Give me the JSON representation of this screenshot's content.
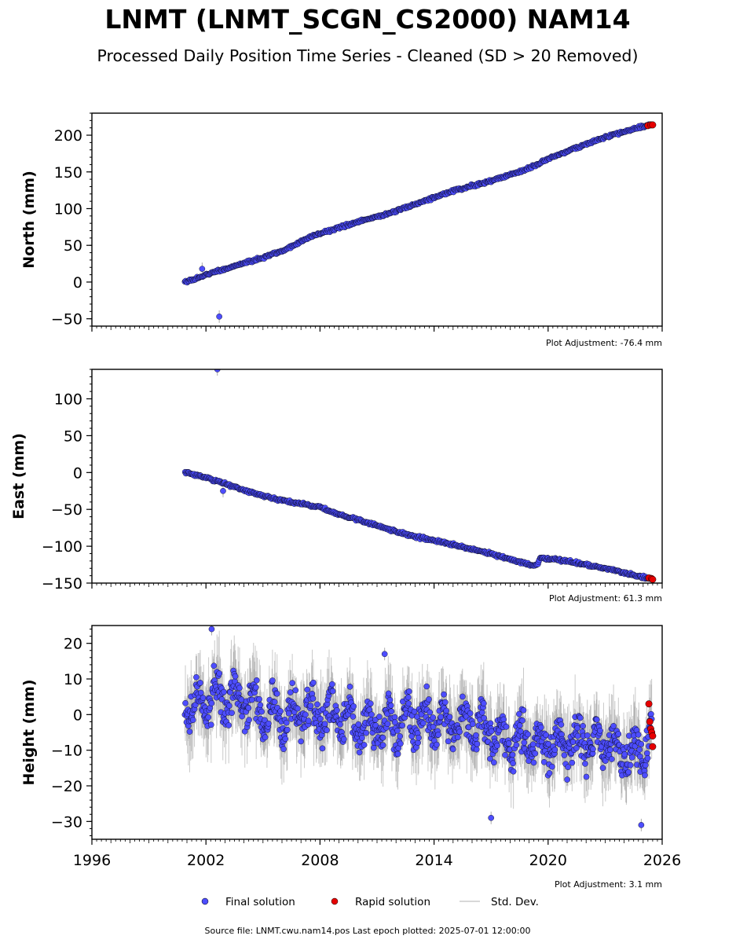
{
  "colors": {
    "final": "#4d4dff",
    "rapid": "#e60000",
    "stddev": "#aaaaaa",
    "marker_edge": "#000000"
  },
  "chart_data": {
    "type": "scatter",
    "title": "LNMT (LNMT_SCGN_CS2000) NAM14",
    "subtitle": "Processed Daily Position Time Series - Cleaned (SD > 20 Removed)",
    "xlim": [
      1996,
      2026
    ],
    "xticks": [
      "1996",
      "2002",
      "2008",
      "2014",
      "2020",
      "2026"
    ],
    "legend": {
      "placement": "bottom-center",
      "entries": [
        "Final solution",
        "Rapid solution",
        "Std. Dev."
      ]
    },
    "source_note": "Source file: LNMT.cwu.nam14.pos  Last epoch plotted: 2025-07-01 12:00:00",
    "panels": [
      {
        "ylabel": "North (mm)",
        "ylim": [
          -60,
          230
        ],
        "yticks": [
          "−50",
          "0",
          "50",
          "100",
          "150",
          "200"
        ],
        "adjustment": "Plot Adjustment: -76.4 mm",
        "final_series": {
          "name": "Final solution",
          "x": [
            2000.9,
            2001.5,
            2002.0,
            2002.5,
            2003.0,
            2004.0,
            2005.0,
            2006.0,
            2007.0,
            2007.5,
            2008.0,
            2009.0,
            2010.0,
            2011.0,
            2012.0,
            2013.0,
            2014.0,
            2015.0,
            2016.0,
            2017.0,
            2018.0,
            2019.0,
            2020.0,
            2021.0,
            2022.0,
            2023.0,
            2024.0,
            2025.0,
            2025.4
          ],
          "y": [
            0,
            5,
            10,
            14,
            18,
            26,
            33,
            42,
            55,
            62,
            66,
            74,
            82,
            89,
            97,
            106,
            115,
            124,
            131,
            138,
            146,
            155,
            168,
            178,
            188,
            197,
            205,
            212,
            214
          ]
        },
        "rapid_series": {
          "name": "Rapid solution",
          "x": [
            2025.25,
            2025.4,
            2025.5
          ],
          "y": [
            213,
            214,
            214
          ]
        },
        "outliers": {
          "x": [
            2001.8,
            2002.7
          ],
          "y": [
            18,
            -47
          ]
        }
      },
      {
        "ylabel": "East (mm)",
        "ylim": [
          -150,
          140
        ],
        "yticks": [
          "−150",
          "−100",
          "−50",
          "0",
          "50",
          "100"
        ],
        "adjustment": "Plot Adjustment: 61.3 mm",
        "final_series": {
          "name": "Final solution",
          "x": [
            2000.9,
            2001.5,
            2002.0,
            2003.0,
            2004.0,
            2005.0,
            2006.0,
            2007.0,
            2008.0,
            2009.0,
            2010.0,
            2011.0,
            2012.0,
            2013.0,
            2014.0,
            2015.0,
            2016.0,
            2017.0,
            2018.0,
            2019.0,
            2019.4,
            2019.6,
            2020.0,
            2021.0,
            2022.0,
            2023.0,
            2024.0,
            2025.0,
            2025.4
          ],
          "y": [
            0,
            -3,
            -7,
            -15,
            -24,
            -32,
            -38,
            -42,
            -47,
            -57,
            -64,
            -72,
            -80,
            -87,
            -92,
            -98,
            -104,
            -110,
            -118,
            -125,
            -126,
            -116,
            -117,
            -120,
            -125,
            -130,
            -136,
            -142,
            -144
          ]
        },
        "rapid_series": {
          "name": "Rapid solution",
          "x": [
            2025.3,
            2025.45,
            2025.5
          ],
          "y": [
            -143,
            -144,
            -145
          ]
        },
        "outliers": {
          "x": [
            2002.6,
            2002.9
          ],
          "y": [
            140,
            -25
          ]
        }
      },
      {
        "ylabel": "Height (mm)",
        "ylim": [
          -35,
          25
        ],
        "yticks": [
          "−30",
          "−20",
          "−10",
          "0",
          "10",
          "20"
        ],
        "adjustment": "Plot Adjustment: 3.1 mm",
        "final_series": {
          "name": "Final solution",
          "trend_x": [
            2000.9,
            2002.0,
            2003.0,
            2004.0,
            2005.0,
            2006.0,
            2007.0,
            2008.0,
            2009.0,
            2010.0,
            2011.0,
            2012.0,
            2013.0,
            2014.0,
            2015.0,
            2016.0,
            2017.0,
            2018.0,
            2019.0,
            2020.0,
            2021.0,
            2022.0,
            2023.0,
            2024.0,
            2025.0,
            2025.4
          ],
          "trend_y": [
            2,
            4,
            5,
            4,
            1,
            -1,
            1,
            0,
            -1,
            -3,
            -3,
            -2,
            -2,
            -2,
            -2,
            -3,
            -6,
            -8,
            -7,
            -8,
            -8,
            -7,
            -8,
            -10,
            -11,
            -5
          ],
          "scatter_amplitude": 8
        },
        "rapid_series": {
          "name": "Rapid solution",
          "x": [
            2025.3,
            2025.35,
            2025.4,
            2025.45,
            2025.5,
            2025.5
          ],
          "y": [
            3,
            -2,
            -4,
            -5,
            -6,
            -9
          ]
        },
        "outliers": {
          "x": [
            2011.4,
            2017.0,
            2024.9,
            2002.3
          ],
          "y": [
            17,
            -29,
            -31,
            24
          ]
        }
      }
    ]
  }
}
